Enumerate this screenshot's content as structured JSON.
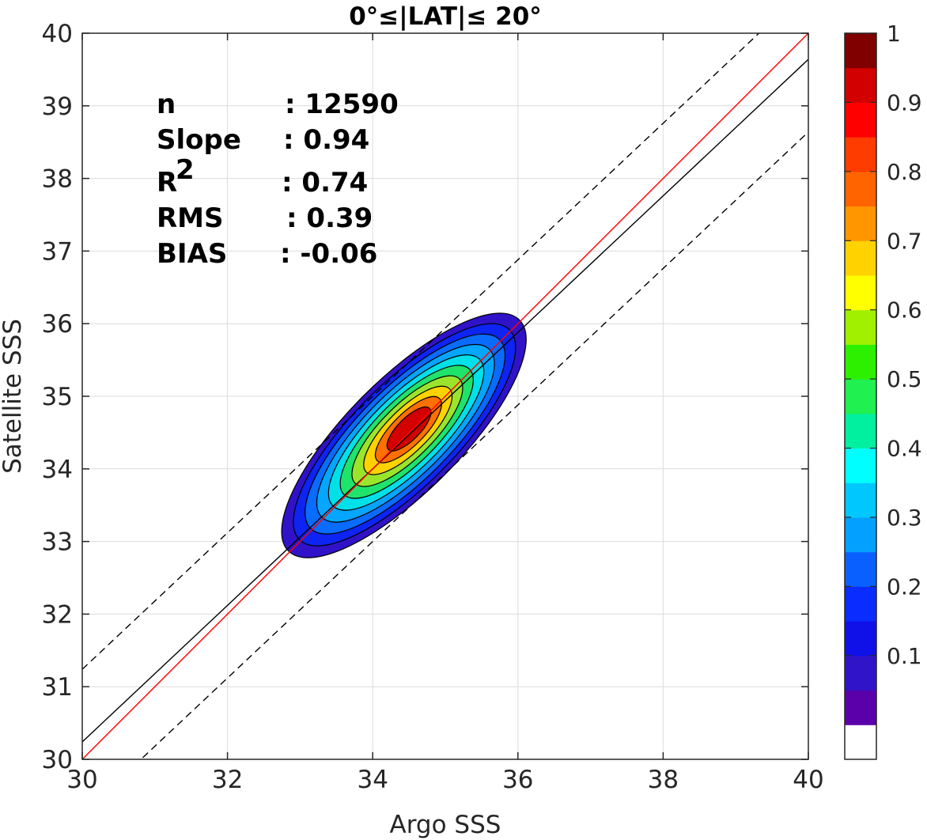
{
  "chart_data": {
    "type": "scatter",
    "subtype": "density-contour",
    "title": "0°≤|LAT|≤ 20°",
    "xlabel": "Argo SSS",
    "ylabel": "Satellite SSS",
    "xlim": [
      30,
      40
    ],
    "ylim": [
      30,
      40
    ],
    "xticks": [
      "30",
      "32",
      "34",
      "36",
      "38",
      "40"
    ],
    "yticks": [
      "30",
      "31",
      "32",
      "33",
      "34",
      "35",
      "36",
      "37",
      "38",
      "39",
      "40"
    ],
    "grid": true,
    "stats": [
      {
        "key": "n",
        "value": ": 12590"
      },
      {
        "key": "Slope",
        "value": ": 0.94"
      },
      {
        "key": "R",
        "sup": "2",
        "value": ": 0.74"
      },
      {
        "key": "RMS",
        "value": ": 0.39"
      },
      {
        "key": "BIAS",
        "value": ": -0.06"
      }
    ],
    "lines": {
      "one_to_one": {
        "slope": 1.0,
        "intercept": 0.0,
        "color": "#ff0000",
        "style": "solid"
      },
      "regression": {
        "slope": 0.94,
        "intercept": 2.04,
        "color": "#000000",
        "style": "solid"
      },
      "bounds": [
        {
          "slope": 0.94,
          "intercept": 3.04,
          "color": "#000000",
          "style": "dashed"
        },
        {
          "slope": 0.94,
          "intercept": 1.04,
          "color": "#000000",
          "style": "dashed"
        }
      ]
    },
    "density": {
      "center": [
        34.5,
        34.55
      ],
      "axis_angle_deg": 45,
      "levels": [
        0.05,
        0.1,
        0.2,
        0.3,
        0.4,
        0.5,
        0.6,
        0.7,
        0.8,
        0.9
      ],
      "level_colors": [
        "#3013c8",
        "#0d24f2",
        "#0a6bff",
        "#04a6ff",
        "#00e0e8",
        "#1fe36a",
        "#9ae52c",
        "#ffd200",
        "#ff7000",
        "#d20000"
      ],
      "outer_half_axes": [
        2.25,
        0.78
      ],
      "inner_half_axes": [
        0.4,
        0.15
      ]
    },
    "colorbar": {
      "ticks": [
        "0.1",
        "0.2",
        "0.3",
        "0.4",
        "0.5",
        "0.6",
        "0.7",
        "0.8",
        "0.9",
        "1"
      ],
      "tick_values": [
        0.1,
        0.2,
        0.3,
        0.4,
        0.5,
        0.6,
        0.7,
        0.8,
        0.9,
        1.0
      ],
      "colors": [
        "#ffffff",
        "#5a00aa",
        "#3014c8",
        "#1010e8",
        "#0a2cff",
        "#0a60ff",
        "#04a0ff",
        "#00c8ff",
        "#00ffff",
        "#00f0a0",
        "#20f050",
        "#2cf000",
        "#a0f000",
        "#ffff00",
        "#ffd200",
        "#ff9600",
        "#ff6400",
        "#ff3c00",
        "#ff0000",
        "#d20000",
        "#800000"
      ]
    }
  }
}
